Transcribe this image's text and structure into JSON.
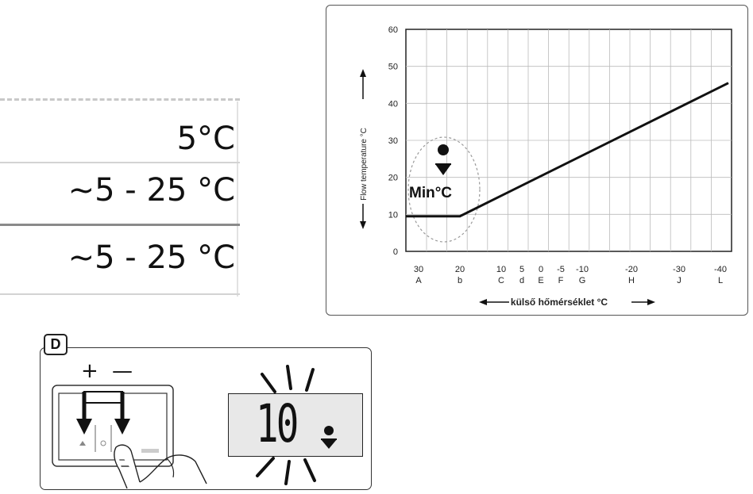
{
  "temperature_table": {
    "rows": [
      "5°C",
      "~5 - 25 °C",
      "~5 - 25 °C"
    ]
  },
  "chart_data": {
    "type": "line",
    "title": "",
    "xlabel": "külső hőmérséklet °C",
    "ylabel": "Flow temperature °C",
    "ylim": [
      0,
      60
    ],
    "yticks": [
      0,
      10,
      20,
      30,
      40,
      50,
      60
    ],
    "x_ticks": [
      {
        "value": "30",
        "letter": "A"
      },
      {
        "value": "20",
        "letter": "b"
      },
      {
        "value": "10",
        "letter": "C"
      },
      {
        "value": "5",
        "letter": "d"
      },
      {
        "value": "0",
        "letter": "E"
      },
      {
        "value": "-5",
        "letter": "F"
      },
      {
        "value": "-10",
        "letter": "G"
      },
      {
        "value": "-20",
        "letter": "H"
      },
      {
        "value": "-30",
        "letter": "J"
      },
      {
        "value": "-40",
        "letter": "L"
      }
    ],
    "grid": true,
    "series": [
      {
        "x": [
          32,
          20,
          -42
        ],
        "y": [
          9.5,
          9.5,
          45.5
        ]
      }
    ],
    "annotation": "Min°C"
  },
  "panel_d": {
    "tag": "D",
    "plus": "+",
    "minus": "—",
    "display_value": "10"
  }
}
